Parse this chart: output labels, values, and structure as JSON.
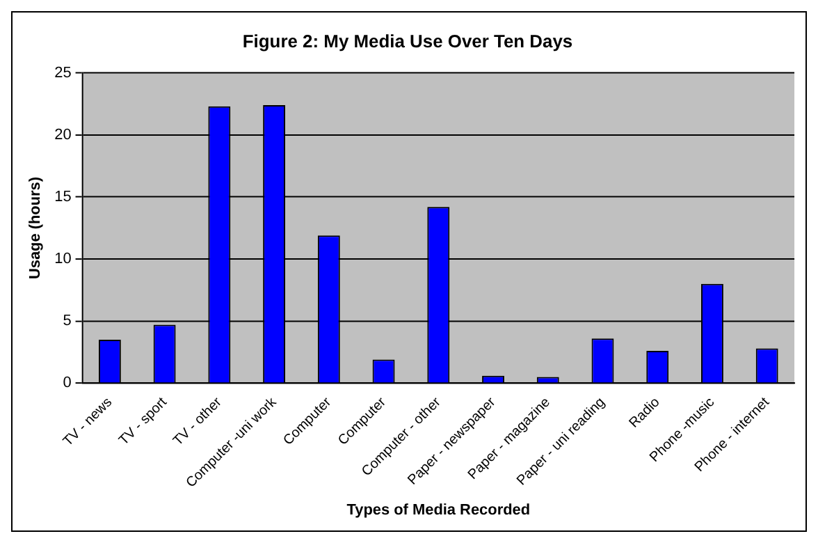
{
  "chart_data": {
    "type": "bar",
    "title": "Figure 2: My Media Use Over Ten Days",
    "xlabel": "Types of Media Recorded",
    "ylabel": "Usage (hours)",
    "categories": [
      "TV - news",
      "TV - sport",
      "TV - other",
      "Computer -uni work",
      "Computer",
      "Computer",
      "Computer - other",
      "Paper - newspaper",
      "Paper - magazine",
      "Paper - uni reading",
      "Radio",
      "Phone -music",
      "Phone - internet"
    ],
    "values": [
      3.5,
      4.7,
      22.3,
      22.4,
      11.9,
      1.9,
      14.2,
      0.6,
      0.5,
      3.6,
      2.6,
      8,
      2.8
    ],
    "color": "#0000ff",
    "ylim": [
      0,
      25
    ],
    "yticks": [
      0,
      5,
      10,
      15,
      20,
      25
    ],
    "grid": "y",
    "legend": false
  }
}
